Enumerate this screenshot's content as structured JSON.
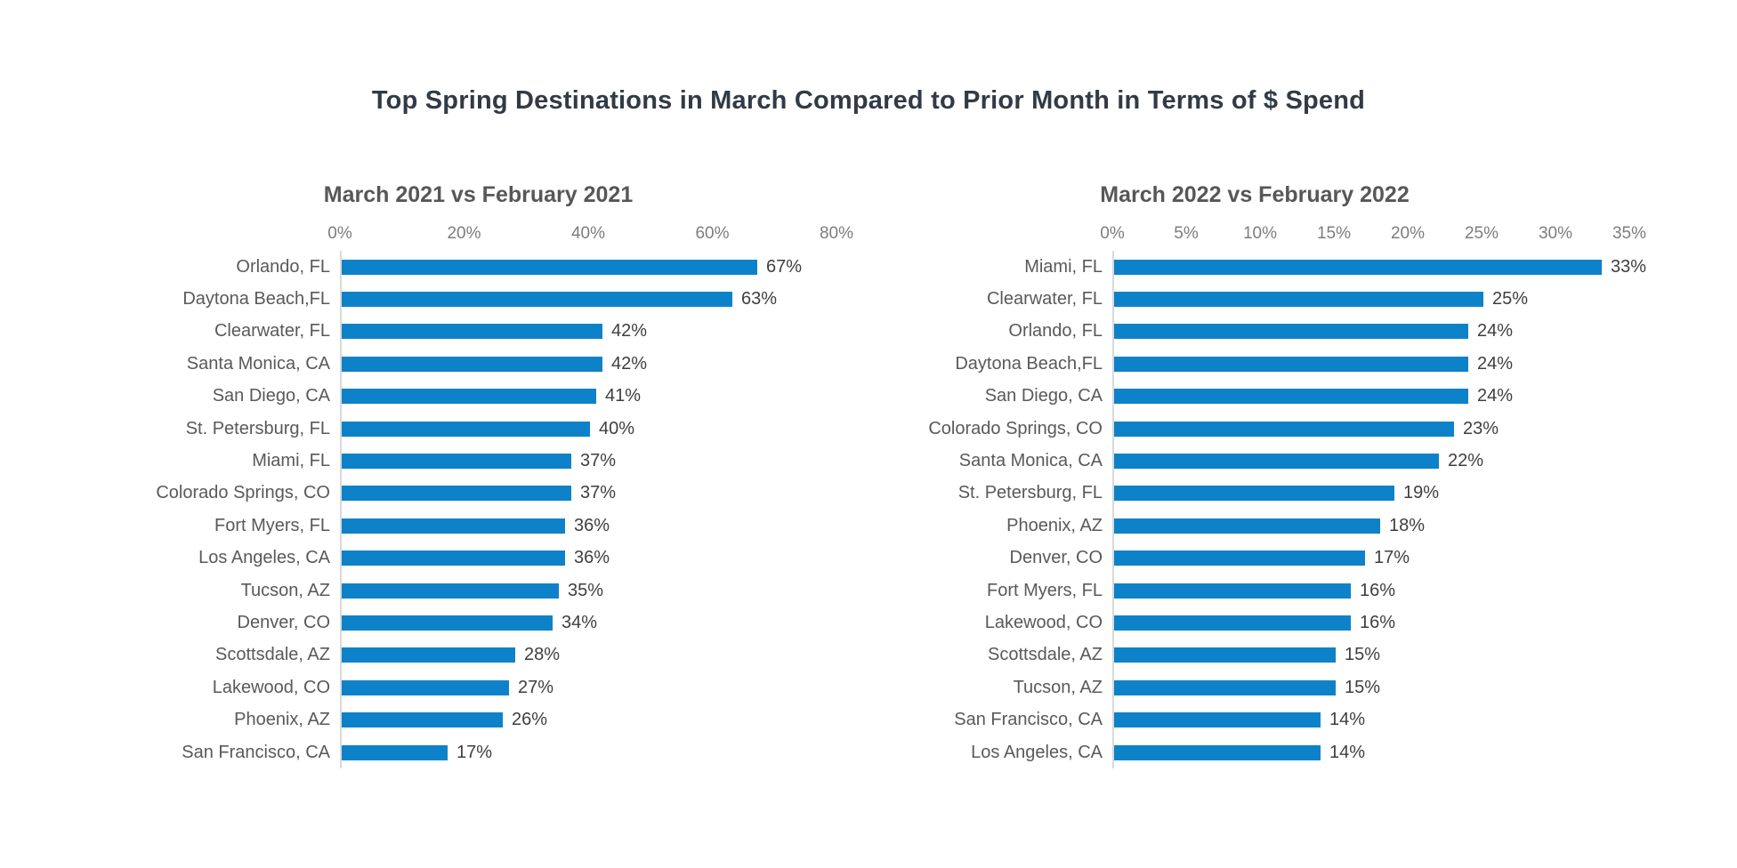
{
  "page": {
    "title": "Top Spring Destinations in March Compared to Prior Month in Terms of $ Spend"
  },
  "colors": {
    "bar": "#0d82c8",
    "main_title": "#323a46",
    "chart_title": "#575757",
    "category_label": "#595959",
    "value_label": "#3f3f3f",
    "axis_label": "#7d7d7d",
    "axis_line": "#d9d9d9",
    "background": "#ffffff"
  },
  "chart_data": [
    {
      "type": "bar",
      "orientation": "horizontal",
      "title": "March 2021 vs February 2021",
      "value_suffix": "%",
      "axis_max": 80,
      "x_ticks": [
        0,
        20,
        40,
        60,
        80
      ],
      "grid": false,
      "legend": false,
      "categories": [
        "Orlando, FL",
        "Daytona Beach,FL",
        "Clearwater, FL",
        "Santa Monica, CA",
        "San Diego, CA",
        "St. Petersburg, FL",
        "Miami, FL",
        "Colorado Springs, CO",
        "Fort Myers, FL",
        "Los Angeles, CA",
        "Tucson, AZ",
        "Denver, CO",
        "Scottsdale, AZ",
        "Lakewood, CO",
        "Phoenix, AZ",
        "San Francisco, CA"
      ],
      "values": [
        67,
        63,
        42,
        42,
        41,
        40,
        37,
        37,
        36,
        36,
        35,
        34,
        28,
        27,
        26,
        17
      ]
    },
    {
      "type": "bar",
      "orientation": "horizontal",
      "title": "March 2022 vs February 2022",
      "value_suffix": "%",
      "axis_max": 35,
      "x_ticks": [
        0,
        5,
        10,
        15,
        20,
        25,
        30,
        35
      ],
      "grid": false,
      "legend": false,
      "categories": [
        "Miami, FL",
        "Clearwater, FL",
        "Orlando, FL",
        "Daytona Beach,FL",
        "San Diego, CA",
        "Colorado Springs, CO",
        "Santa Monica, CA",
        "St. Petersburg, FL",
        "Phoenix, AZ",
        "Denver, CO",
        "Fort Myers, FL",
        "Lakewood, CO",
        "Scottsdale, AZ",
        "Tucson, AZ",
        "San Francisco, CA",
        "Los Angeles, CA"
      ],
      "values": [
        33,
        25,
        24,
        24,
        24,
        23,
        22,
        19,
        18,
        17,
        16,
        16,
        15,
        15,
        14,
        14
      ]
    }
  ]
}
